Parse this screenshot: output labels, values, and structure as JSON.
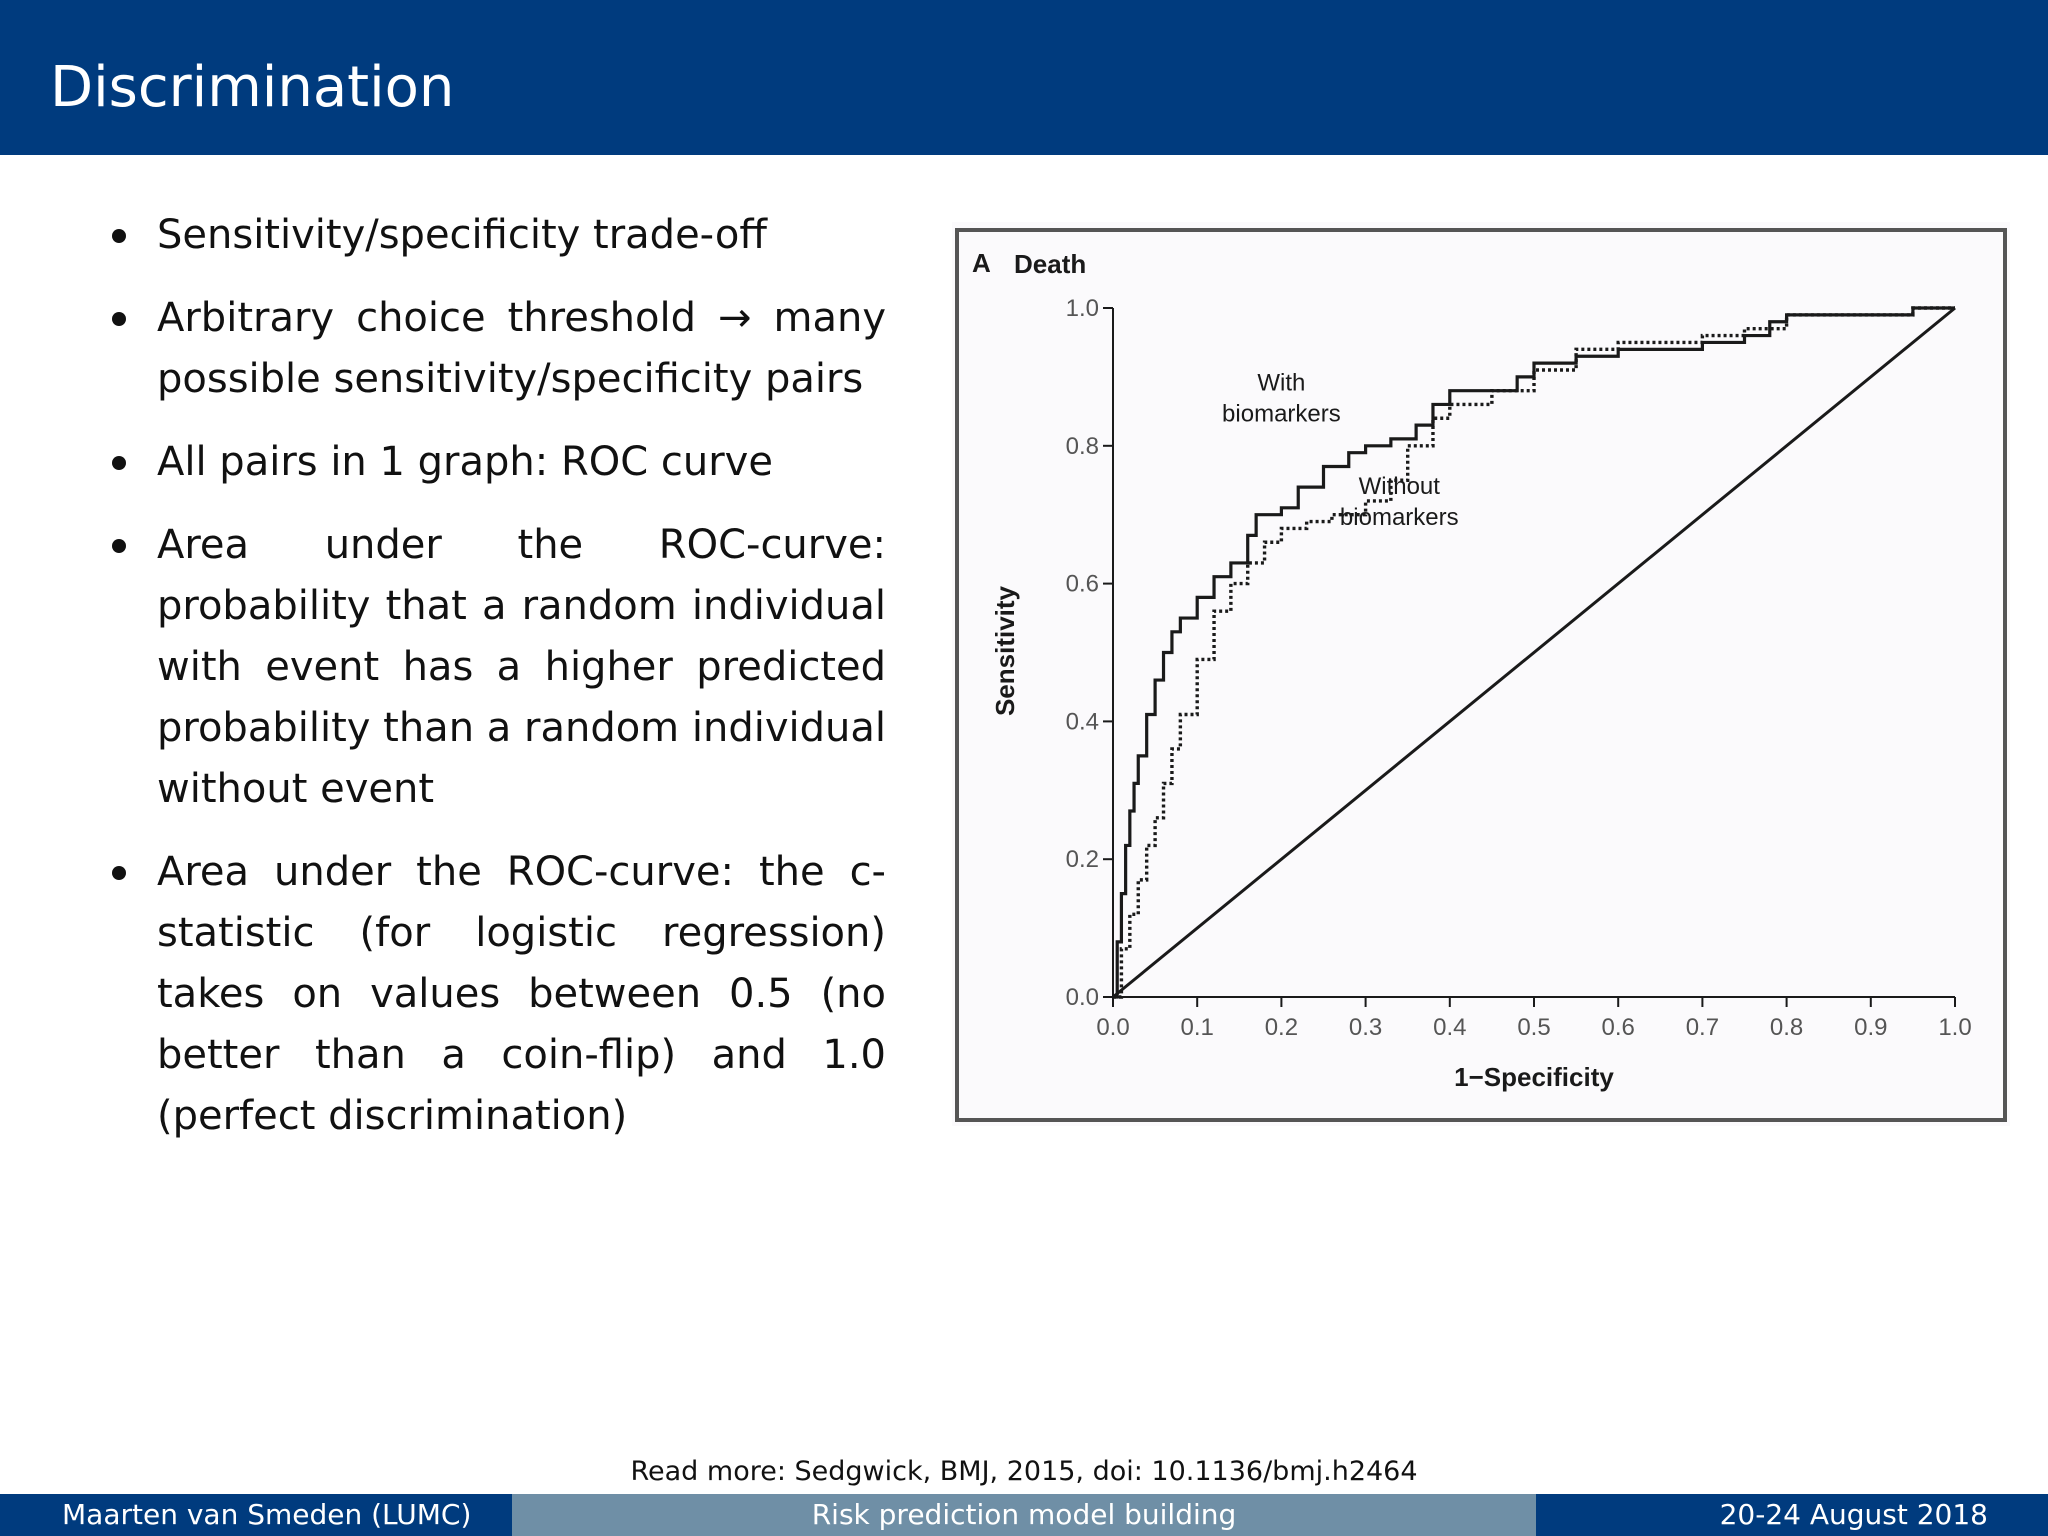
{
  "slide": {
    "title": "Discrimination"
  },
  "bullets": [
    "Sensitivity/specificity trade-off",
    "Arbitrary choice threshold → many possible sensitivity/specificity pairs",
    "All pairs in 1 graph: ROC curve",
    "Area under the ROC-curve: probability that a random individual with event has a higher predicted probability than a random individual without event",
    "Area under the ROC-curve: the c-statistic (for logistic regression) takes on values between 0.5 (no better than a coin-flip) and 1.0 (perfect discrimination)"
  ],
  "chart_data": {
    "type": "line",
    "panel_letter": "A",
    "title": "Death",
    "xlabel": "1−Specificity",
    "ylabel": "Sensitivity",
    "xlim": [
      0,
      1
    ],
    "ylim": [
      0,
      1
    ],
    "x_ticks": [
      "0.0",
      "0.1",
      "0.2",
      "0.3",
      "0.4",
      "0.5",
      "0.6",
      "0.7",
      "0.8",
      "0.9",
      "1.0"
    ],
    "y_ticks": [
      "0.0",
      "0.2",
      "0.4",
      "0.6",
      "0.8",
      "1.0"
    ],
    "grid": false,
    "series": [
      {
        "name": "With biomarkers",
        "style": "solid",
        "x": [
          0,
          0.005,
          0.01,
          0.015,
          0.02,
          0.025,
          0.03,
          0.04,
          0.05,
          0.06,
          0.07,
          0.08,
          0.1,
          0.12,
          0.14,
          0.16,
          0.17,
          0.18,
          0.2,
          0.22,
          0.25,
          0.28,
          0.3,
          0.33,
          0.36,
          0.38,
          0.4,
          0.45,
          0.48,
          0.5,
          0.55,
          0.6,
          0.65,
          0.7,
          0.75,
          0.78,
          0.8,
          0.85,
          0.9,
          0.95,
          1.0
        ],
        "y": [
          0,
          0.08,
          0.15,
          0.22,
          0.27,
          0.31,
          0.35,
          0.41,
          0.46,
          0.5,
          0.53,
          0.55,
          0.58,
          0.61,
          0.63,
          0.67,
          0.7,
          0.7,
          0.71,
          0.74,
          0.77,
          0.79,
          0.8,
          0.81,
          0.83,
          0.86,
          0.88,
          0.88,
          0.9,
          0.92,
          0.93,
          0.94,
          0.94,
          0.95,
          0.96,
          0.98,
          0.99,
          0.99,
          0.99,
          1.0,
          1.0
        ]
      },
      {
        "name": "Without biomarkers",
        "style": "dotted",
        "x": [
          0,
          0.01,
          0.02,
          0.03,
          0.04,
          0.05,
          0.06,
          0.07,
          0.08,
          0.1,
          0.12,
          0.14,
          0.16,
          0.18,
          0.2,
          0.23,
          0.26,
          0.3,
          0.33,
          0.35,
          0.38,
          0.4,
          0.45,
          0.5,
          0.55,
          0.6,
          0.65,
          0.7,
          0.75,
          0.8,
          0.85,
          0.9,
          0.95,
          1.0
        ],
        "y": [
          0,
          0.07,
          0.12,
          0.17,
          0.22,
          0.26,
          0.31,
          0.36,
          0.41,
          0.49,
          0.56,
          0.6,
          0.63,
          0.66,
          0.68,
          0.69,
          0.7,
          0.72,
          0.75,
          0.8,
          0.84,
          0.86,
          0.88,
          0.91,
          0.94,
          0.95,
          0.95,
          0.96,
          0.97,
          0.99,
          0.99,
          0.99,
          1.0,
          1.0
        ]
      },
      {
        "name": "",
        "style": "reference",
        "x": [
          0,
          1
        ],
        "y": [
          0,
          1
        ]
      }
    ],
    "annotations": [
      {
        "lines": [
          "With",
          "biomarkers"
        ],
        "x": 0.2,
        "y": 0.88
      },
      {
        "lines": [
          "Without",
          "biomarkers"
        ],
        "x": 0.34,
        "y": 0.73
      }
    ]
  },
  "reference": "Read more: Sedgwick, BMJ, 2015, doi: 10.1136/bmj.h2464",
  "footer": {
    "author": "Maarten van Smeden  (LUMC)",
    "talk": "Risk prediction model building",
    "date": "20-24 August 2018"
  },
  "colors": {
    "title_bar": "#003b7e",
    "footer_mid": "#6f8fa6",
    "figure_bg": "#fbfafc",
    "frame": "#555555",
    "curve": "#1a1a1a"
  }
}
